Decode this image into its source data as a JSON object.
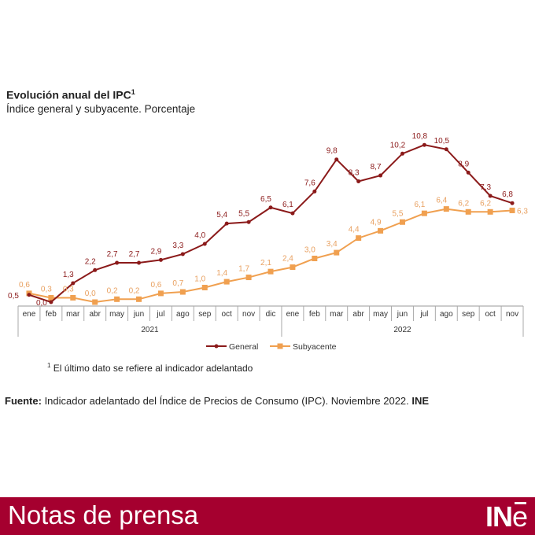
{
  "chart_data": {
    "type": "line",
    "title": "Evolución anual del IPC",
    "title_sup": "1",
    "subtitle": "Índice general y subyacente. Porcentaje",
    "categories": [
      "ene",
      "feb",
      "mar",
      "abr",
      "may",
      "jun",
      "jul",
      "ago",
      "sep",
      "oct",
      "nov",
      "dic",
      "ene",
      "feb",
      "mar",
      "abr",
      "may",
      "jun",
      "jul",
      "ago",
      "sep",
      "oct",
      "nov"
    ],
    "years": [
      {
        "label": "2021",
        "months": 12
      },
      {
        "label": "2022",
        "months": 11
      }
    ],
    "series": [
      {
        "name": "General",
        "color": "#8b1a1a",
        "values": [
          0.5,
          0.0,
          1.3,
          2.2,
          2.7,
          2.7,
          2.9,
          3.3,
          4.0,
          5.4,
          5.5,
          6.5,
          6.1,
          7.6,
          9.8,
          8.3,
          8.7,
          10.2,
          10.8,
          10.5,
          8.9,
          7.3,
          6.8
        ]
      },
      {
        "name": "Subyacente",
        "color": "#f0a050",
        "values": [
          0.6,
          0.3,
          0.3,
          0.0,
          0.2,
          0.2,
          0.6,
          0.7,
          1.0,
          1.4,
          1.7,
          2.1,
          2.4,
          3.0,
          3.4,
          4.4,
          4.9,
          5.5,
          6.1,
          6.4,
          6.2,
          6.2,
          6.3
        ]
      }
    ],
    "ylim": [
      0,
      11
    ],
    "legend": "bottom-center",
    "grid": false,
    "decimal_separator": ","
  },
  "note": {
    "sup": "1",
    "text": "El último dato se refiere al indicador adelantado"
  },
  "source": {
    "label": "Fuente:",
    "text": " Indicador adelantado del Índice de Precios de Consumo (IPC). Noviembre 2022. ",
    "org": "INE"
  },
  "banner": {
    "text": "Notas de prensa",
    "logo": "INE"
  }
}
